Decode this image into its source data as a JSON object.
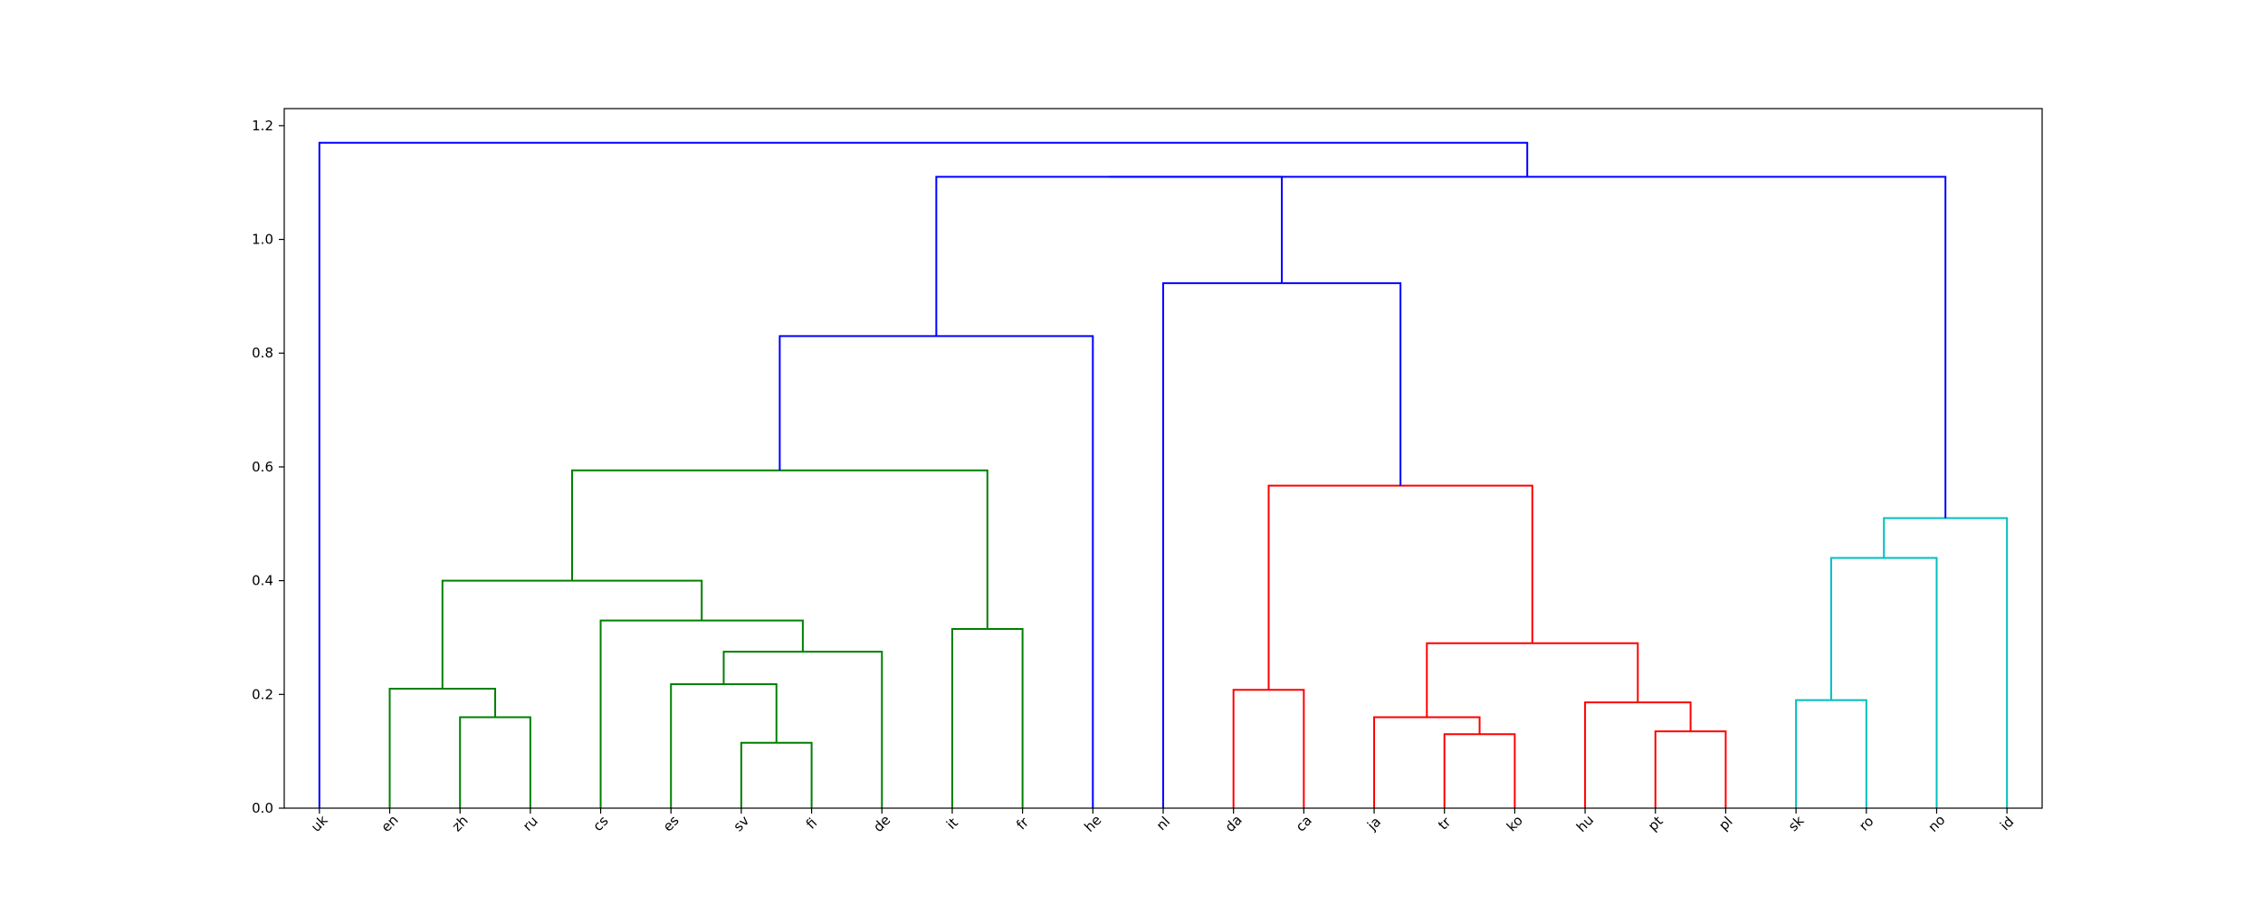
{
  "chart_data": {
    "type": "dendrogram",
    "title": "",
    "xlabel": "",
    "ylabel": "",
    "ylim": [
      0,
      1.23
    ],
    "yticks": [
      "0.0",
      "0.2",
      "0.4",
      "0.6",
      "0.8",
      "1.0",
      "1.2"
    ],
    "leaves": [
      "uk",
      "en",
      "zh",
      "ru",
      "cs",
      "es",
      "sv",
      "fi",
      "de",
      "it",
      "fr",
      "he",
      "nl",
      "da",
      "ca",
      "ja",
      "tr",
      "ko",
      "hu",
      "pt",
      "pl",
      "sk",
      "ro",
      "no",
      "id"
    ],
    "colors": {
      "green": "#008000",
      "red": "#ff0000",
      "cyan": "#00bfbf",
      "blue": "#0000ff"
    },
    "merges": [
      {
        "left": "sv",
        "right": "fi",
        "height": 0.115,
        "color": "green"
      },
      {
        "left": "zh",
        "right": "ru",
        "height": 0.16,
        "color": "green"
      },
      {
        "left": "en",
        "right": "zh+ru",
        "height": 0.21,
        "color": "green"
      },
      {
        "left": "es",
        "right": "sv+fi",
        "height": 0.218,
        "color": "green"
      },
      {
        "left": "es..fi",
        "right": "de",
        "height": 0.275,
        "color": "green"
      },
      {
        "left": "it",
        "right": "fr",
        "height": 0.315,
        "color": "green"
      },
      {
        "left": "cs",
        "right": "es..de",
        "height": 0.33,
        "color": "green"
      },
      {
        "left": "en..ru",
        "right": "cs..de",
        "height": 0.4,
        "color": "green"
      },
      {
        "left": "en..de",
        "right": "it+fr",
        "height": 0.594,
        "color": "green"
      },
      {
        "left": "tr",
        "right": "ko",
        "height": 0.13,
        "color": "red"
      },
      {
        "left": "pt",
        "right": "pl",
        "height": 0.135,
        "color": "red"
      },
      {
        "left": "ja",
        "right": "tr+ko",
        "height": 0.16,
        "color": "red"
      },
      {
        "left": "hu",
        "right": "pt+pl",
        "height": 0.186,
        "color": "red"
      },
      {
        "left": "da",
        "right": "ca",
        "height": 0.208,
        "color": "red"
      },
      {
        "left": "ja..ko",
        "right": "hu..pl",
        "height": 0.29,
        "color": "red"
      },
      {
        "left": "da+ca",
        "right": "ja..pl",
        "height": 0.567,
        "color": "red"
      },
      {
        "left": "sk",
        "right": "ro",
        "height": 0.19,
        "color": "cyan"
      },
      {
        "left": "sk+ro",
        "right": "no",
        "height": 0.44,
        "color": "cyan"
      },
      {
        "left": "sk..no",
        "right": "id",
        "height": 0.51,
        "color": "cyan"
      },
      {
        "left": "en..fr",
        "right": "he",
        "height": 0.83,
        "color": "blue"
      },
      {
        "left": "nl",
        "right": "da..pl",
        "height": 0.923,
        "color": "blue"
      },
      {
        "left": "en..he",
        "right": "nl..pl",
        "height": 1.11,
        "color": "blue"
      },
      {
        "left": "en..pl",
        "right": "sk..id",
        "height": 1.11,
        "color": "blue"
      },
      {
        "left": "uk",
        "right": "en..id",
        "height": 1.17,
        "color": "blue"
      }
    ]
  }
}
